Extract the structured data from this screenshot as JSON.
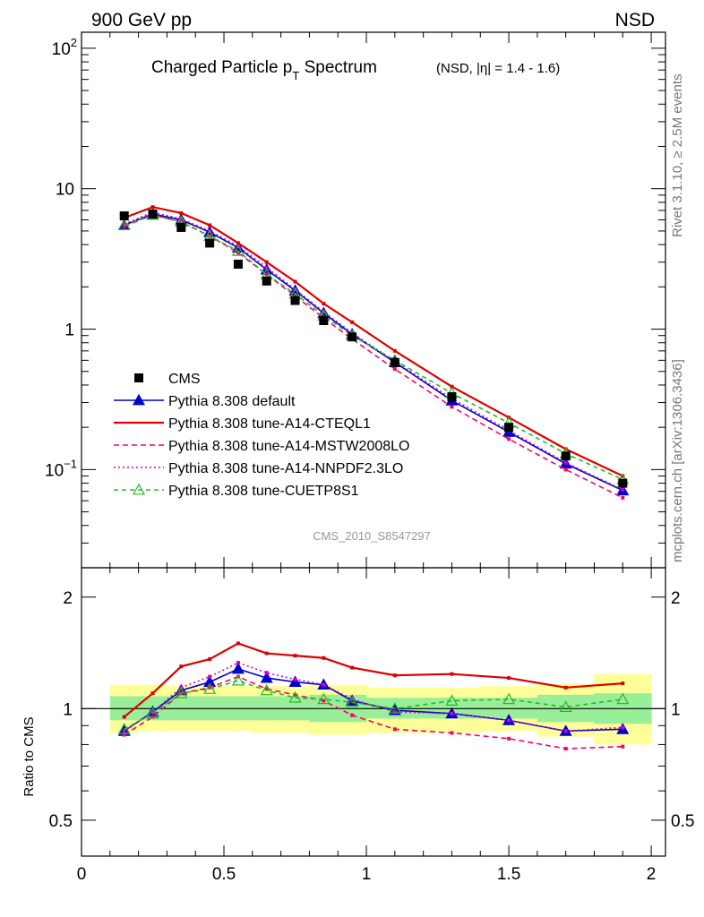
{
  "header": {
    "left": "900 GeV pp",
    "right": "NSD",
    "side_top": "Rivet 3.1.10, ≥ 2.5M events",
    "side_bottom": "mcplots.cern.ch [arXiv:1306.3436]"
  },
  "main_panel": {
    "title_main": "Charged Particle p",
    "title_sub": "T",
    "title_spectrum": " Spectrum",
    "title_extra": "(NSD, |η| = 1.4 - 1.6)",
    "analysis_id": "CMS_2010_S8547297",
    "y_ticks": [
      {
        "value": 100,
        "base": "10",
        "exp": "2"
      },
      {
        "value": 10,
        "base": "10",
        "exp": ""
      },
      {
        "value": 1,
        "base": "1",
        "exp": ""
      },
      {
        "value": 0.1,
        "base": "10",
        "exp": "−1"
      }
    ]
  },
  "ratio_panel": {
    "ylabel": "Ratio to CMS",
    "y_ticks": [
      {
        "value": 2,
        "label": "2"
      },
      {
        "value": 1,
        "label": "1"
      },
      {
        "value": 0.5,
        "label": "0.5"
      }
    ]
  },
  "x_ticks": [
    {
      "value": 0,
      "label": "0"
    },
    {
      "value": 0.5,
      "label": "0.5"
    },
    {
      "value": 1,
      "label": "1"
    },
    {
      "value": 1.5,
      "label": "1.5"
    },
    {
      "value": 2,
      "label": "2"
    }
  ],
  "chart_data": {
    "type": "scatter",
    "xlim": [
      0,
      2.05
    ],
    "ylim": [
      0.02,
      130
    ],
    "yscale": "log",
    "ratio_ylim": [
      0.4,
      2.4
    ],
    "ratio_yscale": "log",
    "legend_position": "bottom-left",
    "x": [
      0.15,
      0.25,
      0.35,
      0.45,
      0.55,
      0.65,
      0.75,
      0.85,
      0.95,
      1.1,
      1.3,
      1.5,
      1.7,
      1.9
    ],
    "data": {
      "name": "CMS",
      "values": [
        6.4,
        6.6,
        5.3,
        4.1,
        2.9,
        2.2,
        1.6,
        1.15,
        0.88,
        0.58,
        0.33,
        0.2,
        0.125,
        0.08
      ]
    },
    "bands": {
      "x_edges": [
        0.1,
        0.2,
        0.3,
        0.4,
        0.5,
        0.6,
        0.7,
        0.8,
        0.9,
        1.0,
        1.2,
        1.4,
        1.6,
        1.8,
        2.0
      ],
      "inner_low": [
        0.93,
        0.93,
        0.93,
        0.93,
        0.93,
        0.93,
        0.93,
        0.92,
        0.92,
        0.94,
        0.94,
        0.94,
        0.92,
        0.91
      ],
      "inner_high": [
        1.08,
        1.08,
        1.08,
        1.08,
        1.08,
        1.08,
        1.08,
        1.09,
        1.09,
        1.07,
        1.07,
        1.07,
        1.09,
        1.1
      ],
      "outer_low": [
        0.86,
        0.87,
        0.87,
        0.87,
        0.87,
        0.86,
        0.86,
        0.85,
        0.85,
        0.86,
        0.86,
        0.87,
        0.84,
        0.8
      ],
      "outer_high": [
        1.16,
        1.16,
        1.15,
        1.15,
        1.15,
        1.15,
        1.15,
        1.16,
        1.16,
        1.14,
        1.14,
        1.15,
        1.17,
        1.24
      ]
    },
    "series": [
      {
        "name": "Pythia 8.308 default",
        "color": "#0000cc",
        "dash": "",
        "marker": "triangle",
        "values": [
          5.5,
          6.6,
          6.0,
          4.9,
          3.8,
          2.65,
          1.88,
          1.3,
          0.92,
          0.58,
          0.31,
          0.185,
          0.11,
          0.071
        ],
        "ratio": [
          0.87,
          0.98,
          1.12,
          1.18,
          1.28,
          1.21,
          1.18,
          1.16,
          1.05,
          0.99,
          0.97,
          0.93,
          0.87,
          0.88
        ]
      },
      {
        "name": "Pythia 8.308 tune-A14-CTEQL1",
        "color": "#dd0000",
        "dash": "",
        "marker": "none",
        "values": [
          6.2,
          7.4,
          6.7,
          5.5,
          4.1,
          3.0,
          2.18,
          1.52,
          1.12,
          0.7,
          0.39,
          0.235,
          0.14,
          0.09
        ],
        "ratio": [
          0.95,
          1.1,
          1.3,
          1.36,
          1.5,
          1.41,
          1.39,
          1.37,
          1.29,
          1.23,
          1.24,
          1.21,
          1.14,
          1.17
        ]
      },
      {
        "name": "Pythia 8.308 tune-A14-MSTW2008LO",
        "color": "#ff0066",
        "dash": "6,4",
        "marker": "none",
        "values": [
          5.4,
          6.5,
          5.8,
          4.6,
          3.5,
          2.45,
          1.72,
          1.2,
          0.85,
          0.52,
          0.28,
          0.165,
          0.1,
          0.063
        ],
        "ratio": [
          0.85,
          0.95,
          1.1,
          1.14,
          1.22,
          1.13,
          1.09,
          1.05,
          0.96,
          0.88,
          0.86,
          0.83,
          0.78,
          0.79
        ]
      },
      {
        "name": "Pythia 8.308 tune-A14-NNPDF2.3LO",
        "color": "#cc00cc",
        "dash": "2,3",
        "marker": "none",
        "values": [
          5.6,
          6.8,
          6.1,
          5.0,
          3.9,
          2.75,
          1.92,
          1.33,
          0.94,
          0.59,
          0.32,
          0.19,
          0.112,
          0.072
        ],
        "ratio": [
          0.87,
          0.98,
          1.14,
          1.22,
          1.33,
          1.25,
          1.2,
          1.16,
          1.06,
          0.98,
          0.97,
          0.93,
          0.87,
          0.89
        ]
      },
      {
        "name": "Pythia 8.308 tune-CUETP8S1",
        "color": "#22bb22",
        "dash": "5,4",
        "marker": "open-triangle",
        "values": [
          5.5,
          6.5,
          5.8,
          4.6,
          3.6,
          2.45,
          1.78,
          1.25,
          0.9,
          0.6,
          0.35,
          0.215,
          0.13,
          0.085
        ],
        "ratio": [
          0.88,
          0.97,
          1.1,
          1.13,
          1.19,
          1.12,
          1.07,
          1.06,
          1.04,
          1.0,
          1.05,
          1.06,
          1.01,
          1.06
        ]
      }
    ]
  }
}
